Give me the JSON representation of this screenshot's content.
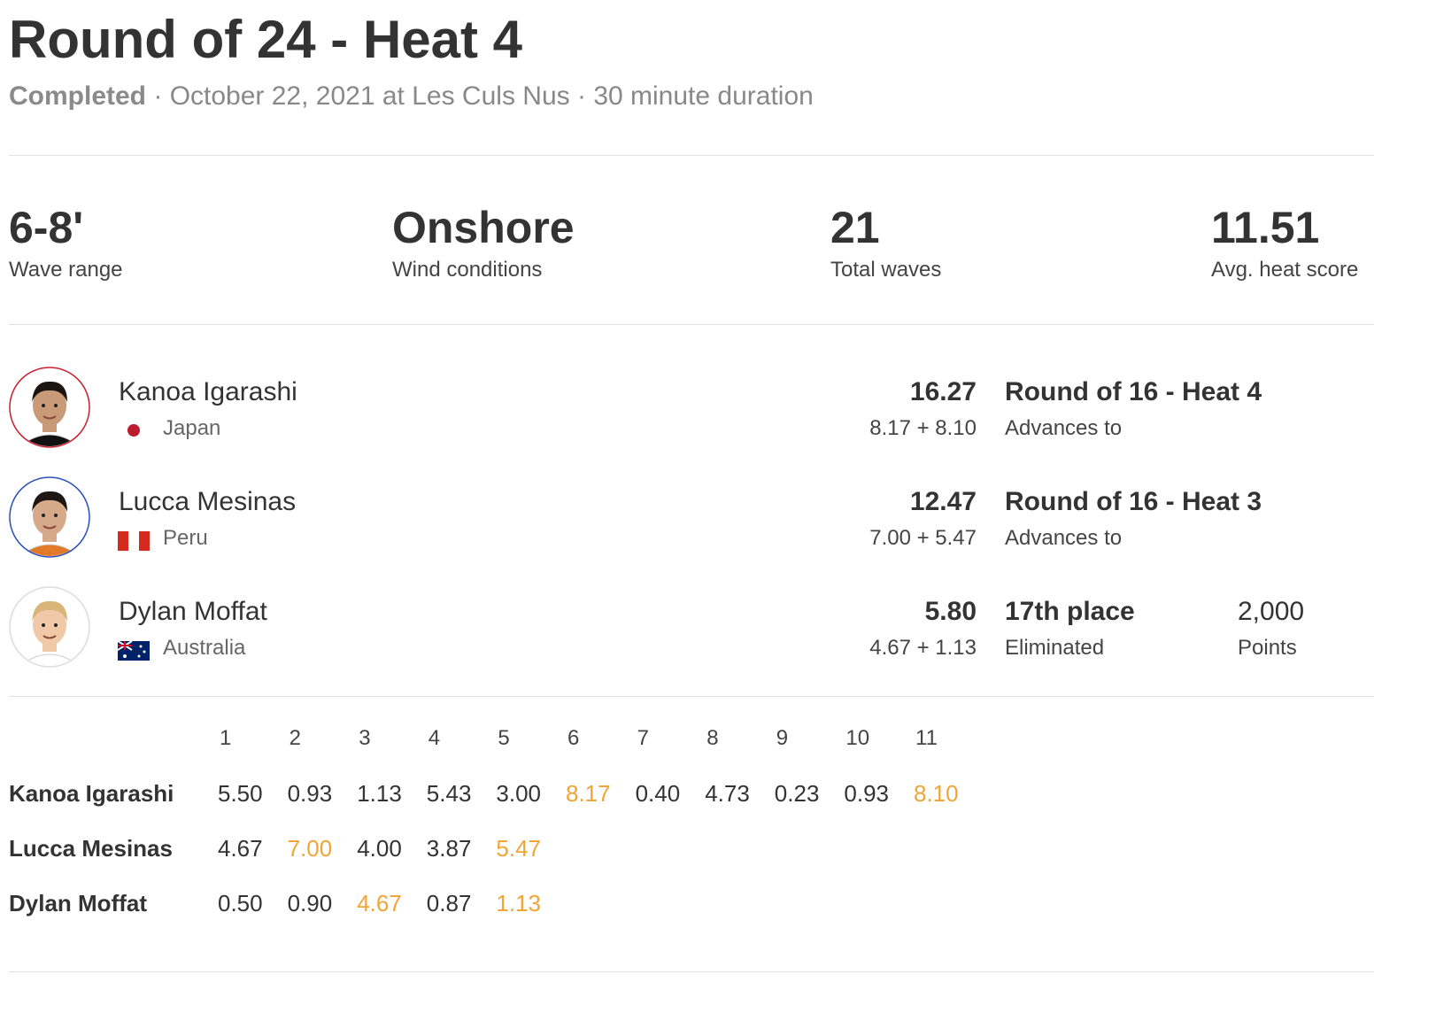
{
  "header": {
    "title": "Round of 24 - Heat 4",
    "status": "Completed",
    "separator": "·",
    "date_location": "October 22, 2021 at Les Culs Nus",
    "duration": "30 minute duration"
  },
  "stats": [
    {
      "value": "6-8'",
      "label": "Wave range"
    },
    {
      "value": "Onshore",
      "label": "Wind conditions"
    },
    {
      "value": "21",
      "label": "Total waves"
    },
    {
      "value": "11.51",
      "label": "Avg. heat score"
    }
  ],
  "athletes": [
    {
      "name": "Kanoa Igarashi",
      "country": "Japan",
      "total": "16.27",
      "breakdown": "8.17 + 8.10",
      "result": "Round of 16 - Heat 4",
      "result_label": "Advances to"
    },
    {
      "name": "Lucca Mesinas",
      "country": "Peru",
      "total": "12.47",
      "breakdown": "7.00 + 5.47",
      "result": "Round of 16 - Heat 3",
      "result_label": "Advances to"
    },
    {
      "name": "Dylan Moffat",
      "country": "Australia",
      "total": "5.80",
      "breakdown": "4.67 + 1.13",
      "result": "17th place",
      "result_label": "Eliminated",
      "points": "2,000",
      "points_label": "Points"
    }
  ],
  "wave_table": {
    "headers": [
      "1",
      "2",
      "3",
      "4",
      "5",
      "6",
      "7",
      "8",
      "9",
      "10",
      "11"
    ],
    "rows": [
      {
        "name": "Kanoa Igarashi",
        "scores": [
          {
            "value": "5.50",
            "counted": false
          },
          {
            "value": "0.93",
            "counted": false
          },
          {
            "value": "1.13",
            "counted": false
          },
          {
            "value": "5.43",
            "counted": false
          },
          {
            "value": "3.00",
            "counted": false
          },
          {
            "value": "8.17",
            "counted": true
          },
          {
            "value": "0.40",
            "counted": false
          },
          {
            "value": "4.73",
            "counted": false
          },
          {
            "value": "0.23",
            "counted": false
          },
          {
            "value": "0.93",
            "counted": false
          },
          {
            "value": "8.10",
            "counted": true
          }
        ]
      },
      {
        "name": "Lucca Mesinas",
        "scores": [
          {
            "value": "4.67",
            "counted": false
          },
          {
            "value": "7.00",
            "counted": true
          },
          {
            "value": "4.00",
            "counted": false
          },
          {
            "value": "3.87",
            "counted": false
          },
          {
            "value": "5.47",
            "counted": true
          }
        ]
      },
      {
        "name": "Dylan Moffat",
        "scores": [
          {
            "value": "0.50",
            "counted": false
          },
          {
            "value": "0.90",
            "counted": false
          },
          {
            "value": "4.67",
            "counted": true
          },
          {
            "value": "0.87",
            "counted": false
          },
          {
            "value": "1.13",
            "counted": true
          }
        ]
      }
    ]
  }
}
